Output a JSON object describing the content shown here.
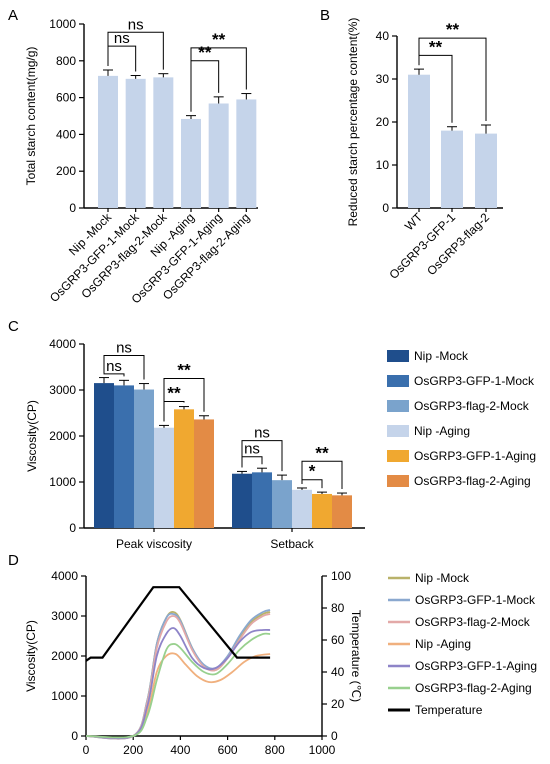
{
  "panel_labels": {
    "a": "A",
    "b": "B",
    "c": "C",
    "d": "D"
  },
  "colors": {
    "panel_ab_bar": "#c5d4ea",
    "c": [
      "#1f4e8c",
      "#3a6fad",
      "#7aa3cc",
      "#c5d4ea",
      "#f0a830",
      "#e38b45"
    ],
    "d": [
      "#b9b26a",
      "#8aa8cf",
      "#e3a9a8",
      "#f0b07e",
      "#8e84c8",
      "#98d08e",
      "#000000"
    ]
  },
  "chart_data": [
    {
      "id": "A",
      "type": "bar",
      "ylabel": "Total starch content(mg/g)",
      "categories": [
        "Nip -Mock",
        "OsGRP3-GFP-1-Mock",
        "OsGRP3-flag-2-Mock",
        "Nip -Aging",
        "OsGRP3-GFP-1-Aging",
        "OsGRP3-flag-2-Aging"
      ],
      "values": [
        718,
        702,
        710,
        484,
        568,
        590
      ],
      "errors": [
        32,
        18,
        20,
        18,
        36,
        32
      ],
      "ylim": [
        0,
        1000
      ],
      "yticks": [
        "0",
        "200",
        "400",
        "600",
        "800",
        "1000"
      ],
      "annotations": [
        {
          "from": 0,
          "to": 1,
          "text": "ns"
        },
        {
          "from": 0,
          "to": 2,
          "text": "ns"
        },
        {
          "from": 3,
          "to": 4,
          "text": "**"
        },
        {
          "from": 3,
          "to": 5,
          "text": "**"
        }
      ]
    },
    {
      "id": "B",
      "type": "bar",
      "ylabel": "Reduced starch percentage content(%)",
      "categories": [
        "WT",
        "OsGRP3-GFP-1",
        "OsGRP3-flag-2"
      ],
      "values": [
        31,
        18,
        17.3
      ],
      "errors": [
        1.3,
        0.9,
        2.0
      ],
      "ylim": [
        0,
        40
      ],
      "yticks": [
        "0",
        "10",
        "20",
        "30",
        "40"
      ],
      "annotations": [
        {
          "from": 0,
          "to": 1,
          "text": "**"
        },
        {
          "from": 0,
          "to": 2,
          "text": "**"
        }
      ]
    },
    {
      "id": "C",
      "type": "bar",
      "ylabel": "Viscosity(CP)",
      "categories": [
        "Peak viscosity",
        "Setback"
      ],
      "series": [
        {
          "name": "Nip -Mock",
          "values": [
            3150,
            1180
          ],
          "errors": [
            120,
            50
          ]
        },
        {
          "name": "OsGRP3-GFP-1-Mock",
          "values": [
            3100,
            1210
          ],
          "errors": [
            110,
            90
          ]
        },
        {
          "name": "OsGRP3-flag-2-Mock",
          "values": [
            3010,
            1040
          ],
          "errors": [
            130,
            110
          ]
        },
        {
          "name": "Nip -Aging",
          "values": [
            2180,
            830
          ],
          "errors": [
            50,
            40
          ]
        },
        {
          "name": "OsGRP3-GFP-1-Aging",
          "values": [
            2580,
            740
          ],
          "errors": [
            60,
            40
          ]
        },
        {
          "name": "OsGRP3-flag-2-Aging",
          "values": [
            2360,
            710
          ],
          "errors": [
            80,
            50
          ]
        }
      ],
      "ylim": [
        0,
        4000
      ],
      "yticks": [
        "0",
        "1000",
        "2000",
        "3000",
        "4000"
      ],
      "annotations": [
        {
          "group": 0,
          "from": 0,
          "to": 1,
          "text": "ns"
        },
        {
          "group": 0,
          "from": 0,
          "to": 2,
          "text": "ns"
        },
        {
          "group": 0,
          "from": 3,
          "to": 4,
          "text": "**"
        },
        {
          "group": 0,
          "from": 3,
          "to": 5,
          "text": "**"
        },
        {
          "group": 1,
          "from": 0,
          "to": 1,
          "text": "ns"
        },
        {
          "group": 1,
          "from": 0,
          "to": 2,
          "text": "ns"
        },
        {
          "group": 1,
          "from": 3,
          "to": 4,
          "text": "*"
        },
        {
          "group": 1,
          "from": 3,
          "to": 5,
          "text": "**"
        }
      ],
      "legend": "right"
    },
    {
      "id": "D",
      "type": "line",
      "ylabel": "Viscosity(CP)",
      "y2label": "Temperature (℃)",
      "xlim": [
        0,
        1000
      ],
      "xticks": [
        "0",
        "200",
        "400",
        "600",
        "800",
        "1000"
      ],
      "ylim": [
        0,
        4000
      ],
      "yticks": [
        "0",
        "1000",
        "2000",
        "3000",
        "4000"
      ],
      "y2lim": [
        0,
        100
      ],
      "y2ticks": [
        "0",
        "20",
        "40",
        "60",
        "80",
        "100"
      ],
      "series": [
        {
          "name": "Nip -Mock",
          "x": [
            0,
            200,
            260,
            300,
            340,
            370,
            400,
            450,
            500,
            550,
            600,
            650,
            700,
            750,
            780
          ],
          "y": [
            0,
            0,
            900,
            2300,
            2950,
            3100,
            2900,
            2200,
            1750,
            1650,
            1950,
            2450,
            2850,
            3050,
            3100
          ]
        },
        {
          "name": "OsGRP3-GFP-1-Mock",
          "x": [
            0,
            200,
            260,
            300,
            340,
            370,
            400,
            450,
            500,
            550,
            600,
            650,
            700,
            750,
            780
          ],
          "y": [
            0,
            0,
            900,
            2300,
            2950,
            3050,
            2880,
            2200,
            1780,
            1700,
            2000,
            2500,
            2900,
            3100,
            3150
          ]
        },
        {
          "name": "OsGRP3-flag-2-Mock",
          "x": [
            0,
            200,
            260,
            300,
            340,
            370,
            400,
            450,
            500,
            550,
            600,
            650,
            700,
            750,
            780
          ],
          "y": [
            0,
            0,
            850,
            2200,
            2850,
            3000,
            2820,
            2150,
            1730,
            1650,
            1950,
            2400,
            2800,
            3000,
            3050
          ]
        },
        {
          "name": "Nip -Aging",
          "x": [
            0,
            200,
            260,
            300,
            340,
            380,
            420,
            470,
            520,
            570,
            620,
            670,
            720,
            780
          ],
          "y": [
            0,
            0,
            600,
            1600,
            2000,
            2050,
            1800,
            1500,
            1350,
            1400,
            1600,
            1850,
            2000,
            2050
          ]
        },
        {
          "name": "OsGRP3-GFP-1-Aging",
          "x": [
            0,
            200,
            260,
            300,
            340,
            370,
            400,
            450,
            500,
            550,
            600,
            650,
            700,
            750,
            780
          ],
          "y": [
            0,
            0,
            750,
            2000,
            2550,
            2700,
            2500,
            1950,
            1700,
            1700,
            1950,
            2350,
            2600,
            2650,
            2650
          ]
        },
        {
          "name": "OsGRP3-flag-2-Aging",
          "x": [
            0,
            200,
            260,
            300,
            340,
            370,
            400,
            450,
            500,
            550,
            600,
            650,
            700,
            750,
            780
          ],
          "y": [
            0,
            0,
            500,
            1400,
            2150,
            2300,
            2200,
            1850,
            1600,
            1550,
            1800,
            2150,
            2400,
            2550,
            2550
          ]
        }
      ],
      "temperature": {
        "name": "Temperature",
        "x": [
          0,
          20,
          70,
          285,
          395,
          640,
          780
        ],
        "y": [
          47,
          49,
          49,
          93,
          93,
          49,
          49
        ]
      },
      "legend": "right"
    }
  ]
}
